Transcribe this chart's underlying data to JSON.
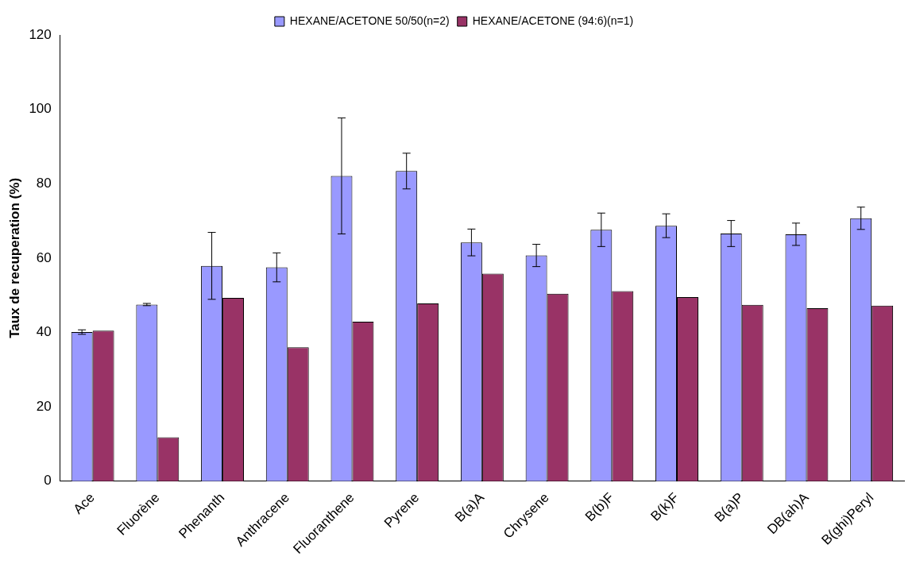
{
  "chart_data": {
    "type": "bar",
    "ylabel": "Taux de recuperation (%)",
    "categories": [
      "Ace",
      "Fluorène",
      "Phenanth",
      "Anthracene",
      "Fluoranthene",
      "Pyrene",
      "B(a)A",
      "Chrysene",
      "B(b)F",
      "B(k)F",
      "B(a)P",
      "DB(ah)A",
      "B(ghi)Peryl"
    ],
    "series": [
      {
        "name": "HEXANE/ACETONE 50/50(n=2)",
        "color": "#9999ff",
        "values": [
          40.1,
          47.5,
          57.9,
          57.5,
          82.1,
          83.4,
          64.2,
          60.7,
          67.6,
          68.7,
          66.6,
          66.4,
          70.7
        ],
        "errors": [
          0.6,
          0.3,
          9,
          3.9,
          15.6,
          4.8,
          3.6,
          3,
          4.5,
          3.2,
          3.5,
          3,
          3
        ]
      },
      {
        "name": "HEXANE/ACETONE (94:6)(n=1)",
        "color": "#993366",
        "values": [
          40.5,
          11.8,
          49.3,
          36,
          42.9,
          47.8,
          55.8,
          50.4,
          51.1,
          49.5,
          47.4,
          46.5,
          47.2
        ]
      }
    ],
    "ylim": [
      0,
      120
    ],
    "yticks": [
      0,
      20,
      40,
      60,
      80,
      100,
      120
    ],
    "grid": false,
    "legend": "top"
  }
}
